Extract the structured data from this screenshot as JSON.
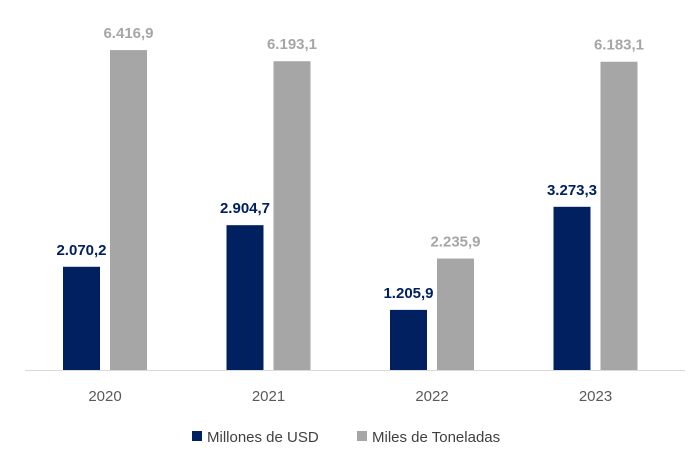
{
  "chart_data": {
    "type": "bar",
    "title": "",
    "xlabel": "",
    "ylabel": "",
    "categories": [
      "2020",
      "2021",
      "2022",
      "2023"
    ],
    "series": [
      {
        "name": "Millones de USD",
        "values": [
          2070.2,
          2904.7,
          1205.9,
          3273.3
        ],
        "labels": [
          "2.070,2",
          "2.904,7",
          "1.205,9",
          "3.273,3"
        ],
        "color": "#002060"
      },
      {
        "name": "Miles de Toneladas",
        "values": [
          6416.9,
          6193.1,
          2235.9,
          6183.1
        ],
        "labels": [
          "6.416,9",
          "6.193,1",
          "2.235,9",
          "6.183,1"
        ],
        "color": "#a6a6a6"
      }
    ],
    "ylim": [
      0,
      7000
    ],
    "grid": false,
    "legend": "bottom"
  }
}
